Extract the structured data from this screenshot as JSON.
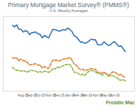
{
  "chart_data": {
    "type": "line",
    "title": "Primary Mortgage Market Survey® (PMMS®)",
    "subtitle": "U.S. Weekly Averages",
    "annotations": [
      "Freddie Mac"
    ],
    "categories": [
      null,
      null,
      null,
      null,
      null,
      "Aug-15",
      null,
      null,
      null,
      "Sep-15",
      null,
      null,
      null,
      "Oct-15",
      null,
      null,
      null,
      null,
      "Nov-15",
      null,
      null,
      null,
      "Dec-15",
      null,
      null,
      null,
      null,
      "Jan-16",
      null,
      null,
      null,
      "Feb-16",
      null,
      null,
      null,
      "Mar-16",
      null,
      null,
      null,
      null,
      "Apr-16",
      null,
      null,
      null,
      "May-16",
      null,
      null,
      null,
      "Jun-16",
      null,
      null,
      null,
      null,
      null
    ],
    "series": [
      {
        "color": "#2a6ebb",
        "line_style": "solid",
        "values": [
          4.08,
          4.04,
          4.09,
          3.98,
          3.98,
          3.91,
          3.94,
          3.93,
          3.84,
          3.89,
          3.9,
          3.91,
          3.86,
          3.85,
          3.76,
          3.82,
          3.79,
          3.76,
          3.87,
          3.98,
          3.97,
          3.95,
          3.93,
          3.95,
          3.97,
          3.96,
          4.01,
          3.97,
          3.92,
          3.81,
          3.79,
          3.72,
          3.65,
          3.65,
          3.62,
          3.64,
          3.68,
          3.73,
          3.71,
          3.71,
          3.59,
          3.58,
          3.59,
          3.66,
          3.61,
          3.57,
          3.58,
          3.64,
          3.66,
          3.6,
          3.54,
          3.56,
          3.48,
          3.41
        ]
      },
      {
        "color": "#e07b28",
        "line_style": "dashed",
        "values": [
          3.25,
          3.24,
          3.25,
          3.17,
          3.22,
          3.18,
          3.17,
          3.13,
          3.07,
          3.08,
          3.09,
          3.1,
          3.06,
          3.07,
          2.99,
          3.03,
          3.0,
          2.98,
          3.09,
          3.2,
          3.19,
          3.19,
          3.17,
          3.2,
          3.22,
          3.23,
          3.24,
          3.26,
          3.19,
          3.09,
          3.06,
          2.99,
          2.95,
          2.96,
          2.93,
          2.94,
          2.96,
          2.98,
          2.96,
          2.96,
          2.88,
          2.86,
          2.86,
          2.89,
          2.85,
          2.81,
          2.83,
          2.89,
          2.89,
          2.85,
          2.81,
          2.83,
          2.78,
          2.74
        ]
      },
      {
        "color": "#8cb640",
        "line_style": "dashed",
        "values": [
          3.01,
          2.96,
          2.93,
          2.93,
          2.91,
          2.92,
          2.91,
          2.88,
          2.92,
          2.93,
          2.92,
          2.91,
          2.88,
          2.9,
          2.88,
          2.91,
          2.9,
          2.88,
          2.91,
          2.98,
          2.96,
          3.02,
          3.0,
          3.03,
          3.05,
          3.08,
          3.08,
          3.08,
          3.0,
          2.88,
          2.88,
          2.85,
          2.81,
          2.84,
          2.8,
          2.87,
          2.91,
          2.93,
          2.92,
          2.89,
          2.85,
          2.86,
          2.8,
          2.84,
          2.85,
          2.78,
          2.79,
          2.8,
          2.77,
          2.75,
          2.69,
          2.68,
          2.7,
          2.66
        ]
      }
    ],
    "ylim": [
      2.4,
      4.3
    ],
    "yticks": [],
    "tick_labels": "x",
    "grid": false
  }
}
